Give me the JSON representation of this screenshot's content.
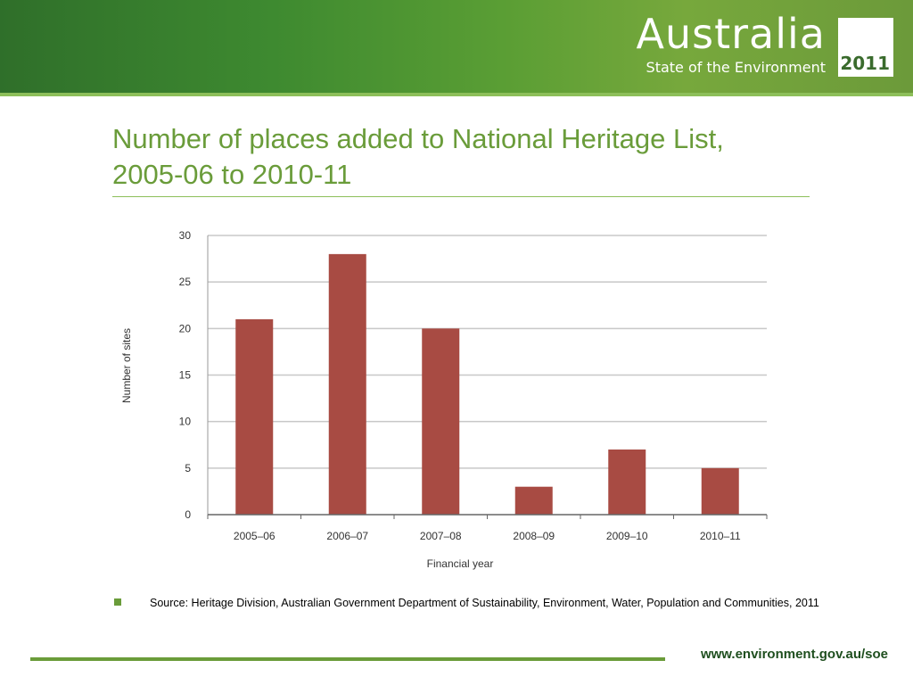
{
  "header": {
    "brand_title": "Australia",
    "brand_subtitle": "State of the Environment",
    "year": "2011"
  },
  "slide": {
    "title_line1": "Number of places added to National Heritage List,",
    "title_line2": "2005-06 to 2010-11",
    "source": "Source: Heritage Division, Australian Government Department of Sustainability, Environment, Water, Population and Communities, 2011",
    "footer_url": "www.environment.gov.au/soe"
  },
  "colors": {
    "bar": "#a84b43",
    "accent": "#6a9c3a",
    "grid": "#c8c8c8"
  },
  "chart_data": {
    "type": "bar",
    "categories": [
      "2005–06",
      "2006–07",
      "2007–08",
      "2008–09",
      "2009–10",
      "2010–11"
    ],
    "values": [
      21,
      28,
      20,
      3,
      7,
      5
    ],
    "xlabel": "Financial year",
    "ylabel": "Number of sites",
    "ylim": [
      0,
      30
    ],
    "yticks": [
      0,
      5,
      10,
      15,
      20,
      25,
      30
    ],
    "grid": true
  }
}
